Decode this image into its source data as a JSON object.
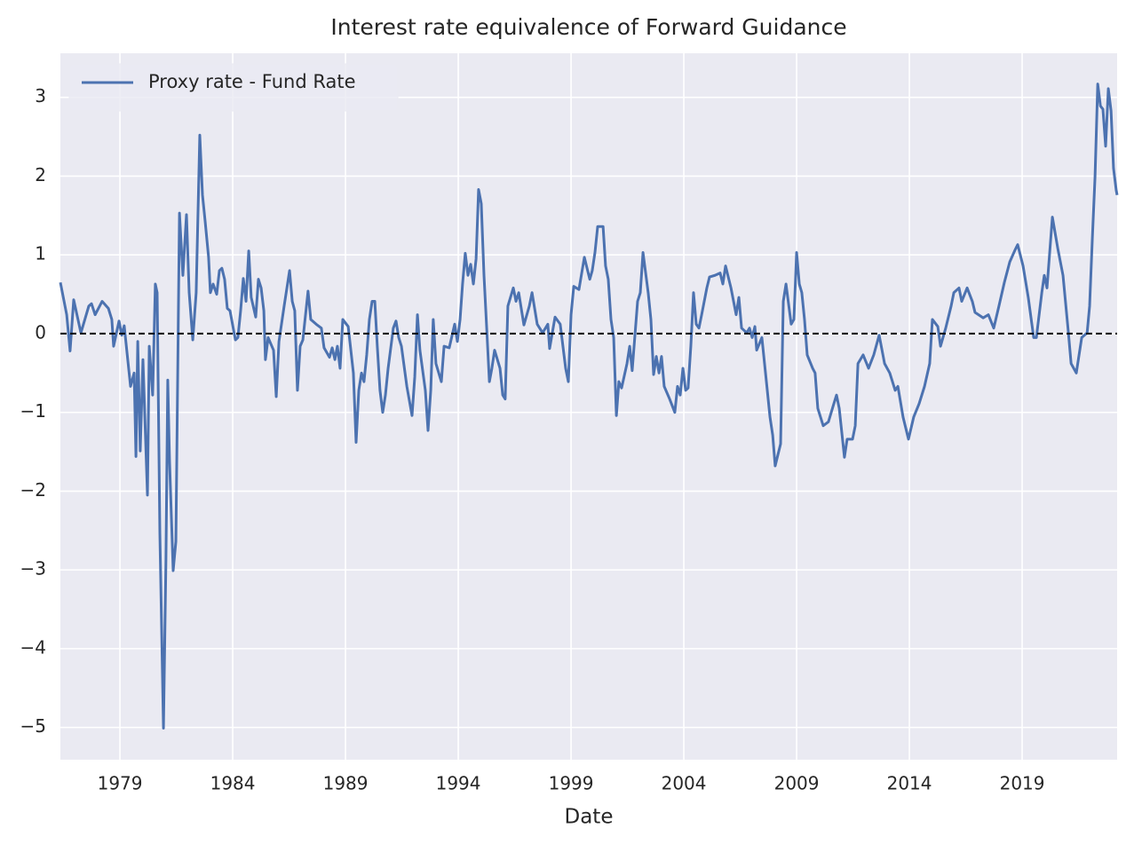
{
  "chart_data": {
    "type": "line",
    "title": "Interest rate equivalence of Forward Guidance",
    "xlabel": "Date",
    "x": [
      1976.36,
      1976.64,
      1976.79,
      1976.95,
      1977.27,
      1977.62,
      1977.74,
      1977.9,
      1978.21,
      1978.49,
      1978.64,
      1978.72,
      1978.96,
      1979.08,
      1979.19,
      1979.47,
      1979.63,
      1979.71,
      1979.79,
      1979.9,
      1980.02,
      1980.22,
      1980.3,
      1980.45,
      1980.57,
      1980.65,
      1980.77,
      1980.93,
      1981.04,
      1981.12,
      1981.2,
      1981.36,
      1981.48,
      1981.64,
      1981.79,
      1981.95,
      1982.07,
      1982.23,
      1982.38,
      1982.54,
      1982.66,
      1982.78,
      1982.93,
      1983.01,
      1983.13,
      1983.29,
      1983.41,
      1983.52,
      1983.64,
      1983.76,
      1983.88,
      1984.12,
      1984.23,
      1984.35,
      1984.47,
      1984.59,
      1984.71,
      1984.82,
      1985.02,
      1985.14,
      1985.26,
      1985.38,
      1985.45,
      1985.57,
      1985.81,
      1985.93,
      1986.05,
      1986.28,
      1986.52,
      1986.64,
      1986.75,
      1986.87,
      1986.99,
      1987.11,
      1987.34,
      1987.46,
      1987.7,
      1987.93,
      1988.05,
      1988.29,
      1988.41,
      1988.53,
      1988.64,
      1988.76,
      1988.88,
      1989.12,
      1989.35,
      1989.47,
      1989.59,
      1989.71,
      1989.82,
      1989.94,
      1990.06,
      1990.18,
      1990.3,
      1990.41,
      1990.53,
      1990.65,
      1990.77,
      1990.89,
      1991.12,
      1991.24,
      1991.36,
      1991.48,
      1991.72,
      1991.95,
      1992.07,
      1992.19,
      1992.3,
      1992.54,
      1992.66,
      1992.78,
      1992.89,
      1993.01,
      1993.25,
      1993.37,
      1993.6,
      1993.84,
      1993.96,
      1994.08,
      1994.19,
      1994.31,
      1994.43,
      1994.55,
      1994.67,
      1994.79,
      1994.9,
      1995.02,
      1995.14,
      1995.26,
      1995.38,
      1995.49,
      1995.61,
      1995.85,
      1995.97,
      1996.08,
      1996.2,
      1996.44,
      1996.56,
      1996.68,
      1996.91,
      1997.15,
      1997.27,
      1997.5,
      1997.74,
      1997.97,
      1998.05,
      1998.29,
      1998.52,
      1998.76,
      1998.88,
      1999.0,
      1999.12,
      1999.35,
      1999.59,
      1999.83,
      1999.94,
      2000.06,
      2000.18,
      2000.42,
      2000.53,
      2000.65,
      2000.77,
      2000.89,
      2001.01,
      2001.12,
      2001.24,
      2001.48,
      2001.6,
      2001.71,
      2001.95,
      2002.07,
      2002.19,
      2002.42,
      2002.54,
      2002.66,
      2002.78,
      2002.9,
      2003.01,
      2003.13,
      2003.37,
      2003.6,
      2003.72,
      2003.84,
      2003.96,
      2004.08,
      2004.19,
      2004.31,
      2004.43,
      2004.55,
      2004.67,
      2004.79,
      2005.02,
      2005.14,
      2005.38,
      2005.61,
      2005.73,
      2005.85,
      2006.09,
      2006.32,
      2006.44,
      2006.56,
      2006.79,
      2006.91,
      2007.03,
      2007.15,
      2007.23,
      2007.46,
      2007.7,
      2007.82,
      2007.94,
      2008.05,
      2008.29,
      2008.41,
      2008.53,
      2008.76,
      2008.88,
      2009.0,
      2009.12,
      2009.23,
      2009.35,
      2009.47,
      2009.71,
      2009.82,
      2009.94,
      2010.18,
      2010.41,
      2010.65,
      2010.77,
      2010.89,
      2011.12,
      2011.24,
      2011.48,
      2011.6,
      2011.72,
      2011.95,
      2012.19,
      2012.42,
      2012.66,
      2012.9,
      2013.13,
      2013.37,
      2013.49,
      2013.72,
      2013.96,
      2014.19,
      2014.43,
      2014.67,
      2014.9,
      2015.02,
      2015.26,
      2015.38,
      2015.61,
      2015.85,
      2015.97,
      2016.2,
      2016.32,
      2016.56,
      2016.79,
      2016.91,
      2017.27,
      2017.5,
      2017.74,
      2017.97,
      2018.21,
      2018.45,
      2018.68,
      2018.8,
      2019.04,
      2019.27,
      2019.51,
      2019.63,
      2019.87,
      2019.98,
      2020.1,
      2020.34,
      2020.58,
      2020.81,
      2021.05,
      2021.17,
      2021.4,
      2021.64,
      2021.88,
      2021.99,
      2022.11,
      2022.23,
      2022.35,
      2022.47,
      2022.58,
      2022.7,
      2022.82,
      2022.94,
      2023.05,
      2023.17,
      2023.21
    ],
    "series": [
      {
        "name": "Proxy rate - Fund Rate",
        "color": "#4c72b0",
        "values": [
          0.65,
          0.24,
          -0.22,
          0.43,
          0.01,
          0.35,
          0.38,
          0.24,
          0.41,
          0.32,
          0.18,
          -0.16,
          0.16,
          -0.02,
          0.1,
          -0.67,
          -0.5,
          -1.56,
          -0.1,
          -1.49,
          -0.33,
          -2.05,
          -0.16,
          -0.78,
          0.63,
          0.52,
          -2.53,
          -5.01,
          -2.87,
          -0.59,
          -1.62,
          -3.01,
          -2.64,
          1.53,
          0.74,
          1.51,
          0.52,
          -0.08,
          0.52,
          2.52,
          1.76,
          1.42,
          0.97,
          0.52,
          0.63,
          0.5,
          0.8,
          0.83,
          0.69,
          0.32,
          0.29,
          -0.08,
          -0.05,
          0.29,
          0.7,
          0.41,
          1.05,
          0.46,
          0.21,
          0.69,
          0.58,
          0.29,
          -0.33,
          -0.05,
          -0.21,
          -0.8,
          -0.1,
          0.35,
          0.8,
          0.41,
          0.29,
          -0.72,
          -0.16,
          -0.08,
          0.54,
          0.18,
          0.12,
          0.07,
          -0.18,
          -0.3,
          -0.18,
          -0.33,
          -0.16,
          -0.44,
          0.18,
          0.09,
          -0.5,
          -1.38,
          -0.72,
          -0.5,
          -0.61,
          -0.27,
          0.18,
          0.41,
          0.41,
          -0.16,
          -0.72,
          -1.0,
          -0.78,
          -0.44,
          0.07,
          0.16,
          -0.05,
          -0.16,
          -0.67,
          -1.04,
          -0.55,
          0.24,
          -0.21,
          -0.72,
          -1.23,
          -0.72,
          0.18,
          -0.38,
          -0.61,
          -0.16,
          -0.18,
          0.12,
          -0.1,
          0.18,
          0.63,
          1.02,
          0.74,
          0.88,
          0.63,
          0.95,
          1.83,
          1.65,
          0.74,
          0.07,
          -0.61,
          -0.44,
          -0.21,
          -0.44,
          -0.78,
          -0.83,
          0.35,
          0.58,
          0.41,
          0.52,
          0.11,
          0.35,
          0.52,
          0.12,
          0.01,
          0.12,
          -0.19,
          0.21,
          0.12,
          -0.44,
          -0.61,
          0.24,
          0.6,
          0.56,
          0.97,
          0.69,
          0.8,
          1.03,
          1.36,
          1.36,
          0.86,
          0.69,
          0.18,
          -0.05,
          -1.04,
          -0.61,
          -0.69,
          -0.38,
          -0.16,
          -0.47,
          0.41,
          0.52,
          1.03,
          0.52,
          0.18,
          -0.52,
          -0.29,
          -0.5,
          -0.29,
          -0.67,
          -0.83,
          -1.0,
          -0.67,
          -0.78,
          -0.44,
          -0.72,
          -0.69,
          -0.16,
          0.52,
          0.12,
          0.07,
          0.24,
          0.58,
          0.72,
          0.74,
          0.77,
          0.63,
          0.86,
          0.58,
          0.24,
          0.46,
          0.07,
          0.01,
          0.07,
          -0.05,
          0.09,
          -0.21,
          -0.05,
          -0.72,
          -1.06,
          -1.29,
          -1.68,
          -1.4,
          0.41,
          0.63,
          0.12,
          0.18,
          1.03,
          0.63,
          0.52,
          0.18,
          -0.27,
          -0.44,
          -0.5,
          -0.95,
          -1.17,
          -1.12,
          -0.89,
          -0.78,
          -0.95,
          -1.57,
          -1.34,
          -1.34,
          -1.17,
          -0.38,
          -0.27,
          -0.44,
          -0.27,
          -0.02,
          -0.38,
          -0.5,
          -0.72,
          -0.67,
          -1.06,
          -1.34,
          -1.06,
          -0.89,
          -0.67,
          -0.38,
          0.18,
          0.09,
          -0.16,
          0.07,
          0.35,
          0.52,
          0.58,
          0.41,
          0.58,
          0.41,
          0.27,
          0.2,
          0.24,
          0.07,
          0.35,
          0.65,
          0.91,
          1.06,
          1.13,
          0.86,
          0.46,
          -0.05,
          -0.05,
          0.52,
          0.74,
          0.58,
          1.48,
          1.08,
          0.74,
          0.01,
          -0.38,
          -0.5,
          -0.05,
          0.01,
          0.35,
          1.2,
          1.99,
          3.17,
          2.89,
          2.85,
          2.38,
          3.11,
          2.83,
          2.1,
          1.82,
          1.76
        ]
      }
    ],
    "hline": 0,
    "xlim": [
      1976.36,
      2023.21
    ],
    "xticks": [
      1979,
      1984,
      1989,
      1994,
      1999,
      2004,
      2009,
      2014,
      2019
    ],
    "ylim": [
      -5.41,
      3.56
    ],
    "yticks": [
      {
        "value": -5,
        "label": "−5"
      },
      {
        "value": -4,
        "label": "−4"
      },
      {
        "value": -3,
        "label": "−3"
      },
      {
        "value": -2,
        "label": "−2"
      },
      {
        "value": -1,
        "label": "−1"
      },
      0,
      1,
      2,
      3
    ],
    "grid": true,
    "legend": "upper left"
  }
}
